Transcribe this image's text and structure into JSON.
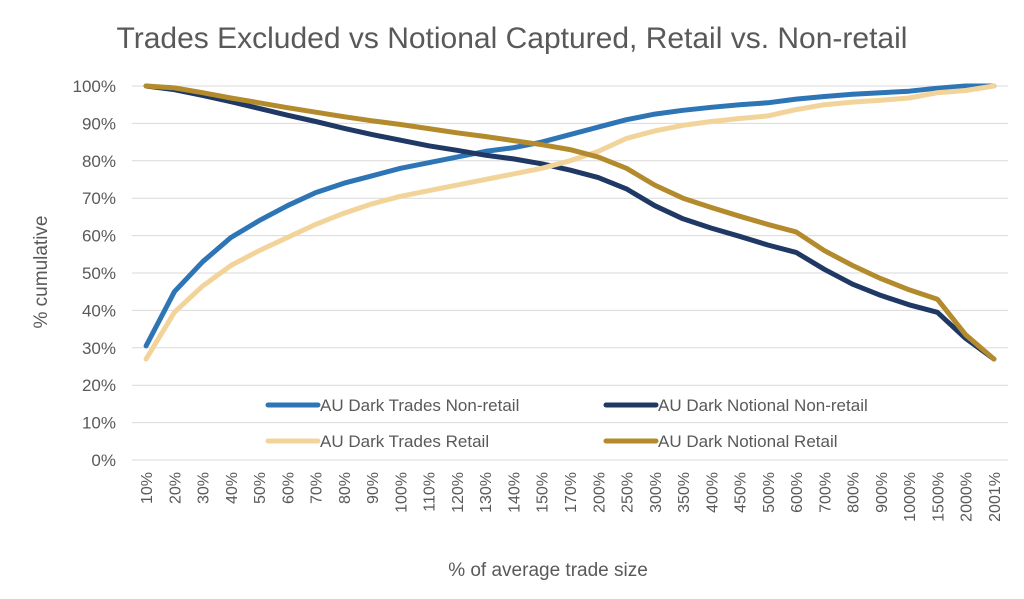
{
  "chart_data": {
    "type": "line",
    "title": "Trades Excluded vs Notional Captured, Retail vs. Non-retail",
    "xlabel": "% of average trade size",
    "ylabel": "% cumulative",
    "ylim": [
      0,
      100
    ],
    "ytick_labels": [
      "0%",
      "10%",
      "20%",
      "30%",
      "40%",
      "50%",
      "60%",
      "70%",
      "80%",
      "90%",
      "100%"
    ],
    "grid": true,
    "legend_position": "center-bottom",
    "categories": [
      "10%",
      "20%",
      "30%",
      "40%",
      "50%",
      "60%",
      "70%",
      "80%",
      "90%",
      "100%",
      "110%",
      "120%",
      "130%",
      "140%",
      "150%",
      "170%",
      "200%",
      "250%",
      "300%",
      "350%",
      "400%",
      "450%",
      "500%",
      "600%",
      "700%",
      "800%",
      "900%",
      "1000%",
      "1500%",
      "2000%",
      "2001%"
    ],
    "series": [
      {
        "name": "AU Dark Trades Non-retail",
        "color": "#2e75b6",
        "values": [
          30.5,
          45,
          53,
          59.5,
          64,
          68,
          71.5,
          74,
          76,
          78,
          79.5,
          81,
          82.5,
          83.5,
          85,
          87,
          89,
          91,
          92.5,
          93.5,
          94.3,
          95,
          95.5,
          96.5,
          97.2,
          97.8,
          98.2,
          98.6,
          99.4,
          100,
          100
        ]
      },
      {
        "name": "AU Dark Notional Non-retail",
        "color": "#1f3864",
        "values": [
          100,
          99,
          97.5,
          95.8,
          94,
          92.2,
          90.5,
          88.7,
          87,
          85.5,
          84,
          82.8,
          81.5,
          80.5,
          79.2,
          77.5,
          75.5,
          72.5,
          68,
          64.5,
          62,
          59.8,
          57.5,
          55.5,
          51,
          47,
          44,
          41.5,
          39.5,
          32.5,
          27
        ]
      },
      {
        "name": "AU Dark Trades Retail",
        "color": "#f2d49a",
        "values": [
          27,
          39.5,
          46.5,
          52,
          56,
          59.5,
          63,
          66,
          68.5,
          70.5,
          72,
          73.5,
          75,
          76.5,
          78,
          80,
          82.5,
          86,
          88,
          89.5,
          90.5,
          91.3,
          92,
          93.7,
          95,
          95.7,
          96.2,
          96.8,
          98.2,
          98.8,
          100
        ]
      },
      {
        "name": "AU Dark Notional Retail",
        "color": "#b38b2d",
        "values": [
          100,
          99.5,
          98.2,
          96.8,
          95.5,
          94.2,
          93,
          91.8,
          90.7,
          89.7,
          88.6,
          87.5,
          86.5,
          85.4,
          84.3,
          83,
          81,
          78,
          73.5,
          70,
          67.5,
          65.2,
          63,
          61,
          56,
          52,
          48.5,
          45.5,
          43,
          33.5,
          27
        ]
      }
    ]
  }
}
